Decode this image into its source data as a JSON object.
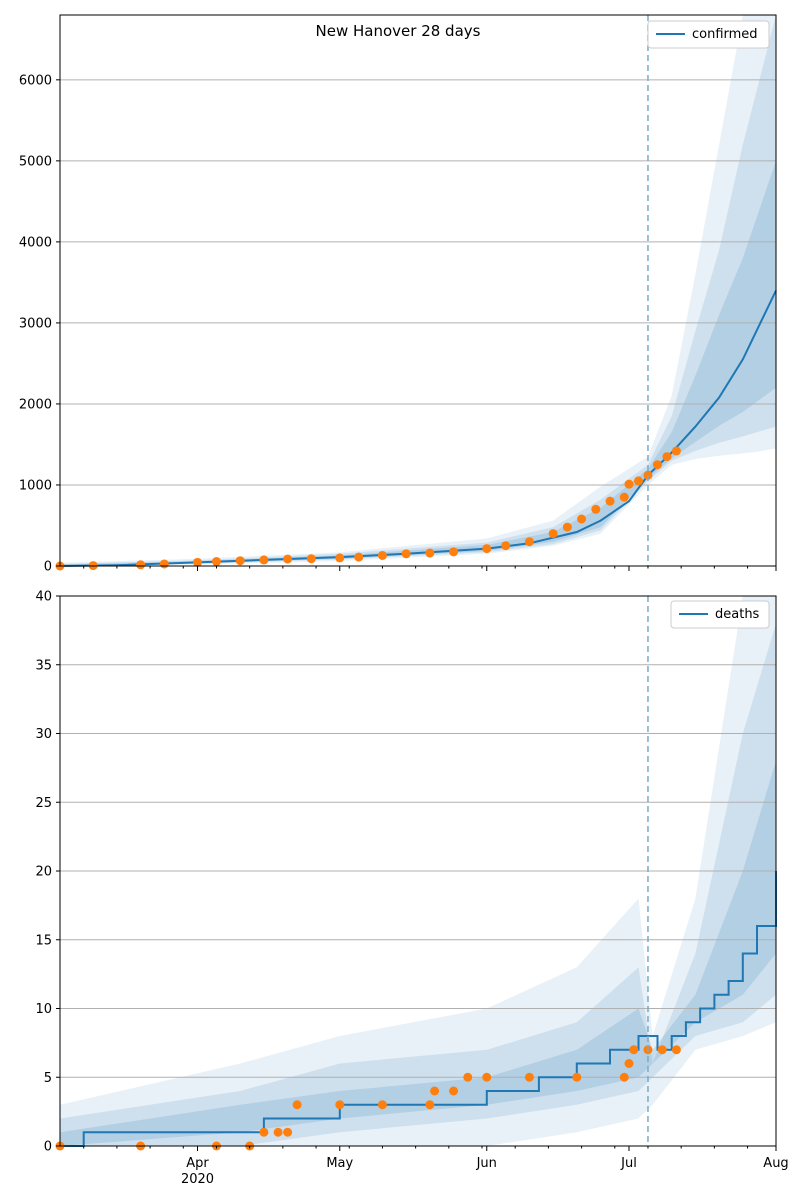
{
  "title": "New Hanover 28 days",
  "x_axis": {
    "start": "2020-03-03",
    "end": "2020-08-01",
    "tick_labels": [
      {
        "date": "2020-04-01",
        "label": "Apr",
        "sublabel": "2020"
      },
      {
        "date": "2020-05-01",
        "label": "May",
        "sublabel": ""
      },
      {
        "date": "2020-06-01",
        "label": "Jun",
        "sublabel": ""
      },
      {
        "date": "2020-07-01",
        "label": "Jul",
        "sublabel": ""
      },
      {
        "date": "2020-08-01",
        "label": "Aug",
        "sublabel": ""
      }
    ],
    "forecast_start": "2020-07-05"
  },
  "colors": {
    "line": "#1f77b4",
    "band": "#1f77b4",
    "points": "#ff7f0e",
    "divider": "#7aaac9",
    "grid": "#b0b0b0"
  },
  "chart_data": [
    {
      "type": "line",
      "panel": "top",
      "legend": "confirmed",
      "legend_position": "top-right",
      "grid": "horizontal",
      "ylim": [
        0,
        6800
      ],
      "yticks": [
        0,
        1000,
        2000,
        3000,
        4000,
        5000,
        6000
      ],
      "median": {
        "x": [
          "2020-03-03",
          "2020-03-15",
          "2020-04-01",
          "2020-04-15",
          "2020-05-01",
          "2020-05-15",
          "2020-06-01",
          "2020-06-10",
          "2020-06-20",
          "2020-06-25",
          "2020-07-01",
          "2020-07-05",
          "2020-07-10",
          "2020-07-15",
          "2020-07-20",
          "2020-07-25",
          "2020-08-01"
        ],
        "y": [
          0,
          10,
          45,
          75,
          110,
          150,
          215,
          280,
          420,
          560,
          800,
          1120,
          1400,
          1720,
          2080,
          2550,
          3400
        ]
      },
      "bands": [
        {
          "x": [
            "2020-03-03",
            "2020-04-01",
            "2020-05-01",
            "2020-06-01",
            "2020-06-15",
            "2020-06-25",
            "2020-07-05",
            "2020-07-10",
            "2020-07-15",
            "2020-07-20",
            "2020-07-25",
            "2020-07-28",
            "2020-08-01"
          ],
          "low": [
            0,
            20,
            60,
            150,
            250,
            400,
            1000,
            1250,
            1320,
            1360,
            1390,
            1410,
            1450
          ],
          "high": [
            40,
            90,
            170,
            340,
            560,
            980,
            1350,
            2100,
            3600,
            5200,
            6800,
            6800,
            6800
          ]
        },
        {
          "x": [
            "2020-03-03",
            "2020-04-01",
            "2020-05-01",
            "2020-06-01",
            "2020-06-15",
            "2020-06-25",
            "2020-07-05",
            "2020-07-10",
            "2020-07-15",
            "2020-07-20",
            "2020-07-25",
            "2020-08-01"
          ],
          "low": [
            0,
            30,
            80,
            170,
            270,
            440,
            1050,
            1300,
            1420,
            1520,
            1600,
            1720
          ],
          "high": [
            25,
            70,
            150,
            290,
            480,
            820,
            1250,
            1850,
            2900,
            3900,
            5200,
            6800
          ]
        },
        {
          "x": [
            "2020-03-03",
            "2020-04-01",
            "2020-05-01",
            "2020-06-01",
            "2020-06-15",
            "2020-06-25",
            "2020-07-05",
            "2020-07-10",
            "2020-07-15",
            "2020-07-20",
            "2020-07-25",
            "2020-08-01"
          ],
          "low": [
            0,
            35,
            90,
            185,
            300,
            480,
            1080,
            1330,
            1530,
            1730,
            1900,
            2200
          ],
          "high": [
            18,
            60,
            130,
            260,
            420,
            720,
            1200,
            1650,
            2350,
            3100,
            3800,
            5000
          ]
        }
      ],
      "observed": {
        "x": [
          "2020-03-03",
          "2020-03-10",
          "2020-03-20",
          "2020-03-25",
          "2020-04-01",
          "2020-04-05",
          "2020-04-10",
          "2020-04-15",
          "2020-04-20",
          "2020-04-25",
          "2020-05-01",
          "2020-05-05",
          "2020-05-10",
          "2020-05-15",
          "2020-05-20",
          "2020-05-25",
          "2020-06-01",
          "2020-06-05",
          "2020-06-10",
          "2020-06-15",
          "2020-06-18",
          "2020-06-21",
          "2020-06-24",
          "2020-06-27",
          "2020-06-30",
          "2020-07-01",
          "2020-07-03",
          "2020-07-05",
          "2020-07-07",
          "2020-07-09",
          "2020-07-11"
        ],
        "y": [
          0,
          5,
          15,
          25,
          45,
          55,
          65,
          75,
          85,
          90,
          100,
          110,
          130,
          150,
          160,
          175,
          215,
          250,
          300,
          400,
          480,
          580,
          700,
          800,
          850,
          1010,
          1050,
          1120,
          1250,
          1350,
          1420
        ]
      }
    },
    {
      "type": "line",
      "panel": "bottom",
      "legend": "deaths",
      "legend_position": "top-right",
      "grid": "horizontal",
      "ylim": [
        0,
        40
      ],
      "yticks": [
        0,
        5,
        10,
        15,
        20,
        25,
        30,
        35,
        40
      ],
      "median": {
        "x": [
          "2020-03-03",
          "2020-03-08",
          "2020-04-15",
          "2020-05-01",
          "2020-05-25",
          "2020-06-01",
          "2020-06-12",
          "2020-06-20",
          "2020-06-27",
          "2020-07-03",
          "2020-07-05",
          "2020-07-07",
          "2020-07-10",
          "2020-07-13",
          "2020-07-16",
          "2020-07-19",
          "2020-07-22",
          "2020-07-25",
          "2020-07-28",
          "2020-08-01"
        ],
        "y": [
          0,
          1,
          2,
          3,
          3,
          4,
          5,
          6,
          7,
          8,
          8,
          7,
          8,
          9,
          10,
          11,
          12,
          14,
          16,
          20
        ]
      },
      "bands": [
        {
          "x": [
            "2020-03-03",
            "2020-04-10",
            "2020-05-01",
            "2020-06-01",
            "2020-06-20",
            "2020-07-03",
            "2020-07-06",
            "2020-07-15",
            "2020-07-25",
            "2020-08-01"
          ],
          "low": [
            0,
            0,
            0,
            0,
            1,
            2,
            3,
            7,
            8,
            9
          ],
          "high": [
            3,
            6,
            8,
            10,
            13,
            18,
            8,
            18,
            40,
            40
          ]
        },
        {
          "x": [
            "2020-03-03",
            "2020-04-10",
            "2020-05-01",
            "2020-06-01",
            "2020-06-20",
            "2020-07-03",
            "2020-07-06",
            "2020-07-15",
            "2020-07-25",
            "2020-08-01"
          ],
          "low": [
            0,
            0,
            1,
            2,
            3,
            4,
            5,
            8,
            9,
            11
          ],
          "high": [
            2,
            4,
            6,
            7,
            9,
            13,
            6,
            14,
            30,
            38
          ]
        },
        {
          "x": [
            "2020-03-03",
            "2020-04-10",
            "2020-05-01",
            "2020-06-01",
            "2020-06-20",
            "2020-07-03",
            "2020-07-06",
            "2020-07-15",
            "2020-07-25",
            "2020-08-01"
          ],
          "low": [
            0,
            1,
            2,
            3,
            4,
            5,
            6,
            9,
            11,
            14
          ],
          "high": [
            1,
            3,
            4,
            5,
            7,
            10,
            7,
            11,
            20,
            28
          ]
        }
      ],
      "observed": {
        "x": [
          "2020-03-03",
          "2020-03-20",
          "2020-04-05",
          "2020-04-12",
          "2020-04-15",
          "2020-04-18",
          "2020-04-20",
          "2020-04-22",
          "2020-05-01",
          "2020-05-10",
          "2020-05-20",
          "2020-05-21",
          "2020-05-25",
          "2020-05-28",
          "2020-06-01",
          "2020-06-10",
          "2020-06-20",
          "2020-06-30",
          "2020-07-01",
          "2020-07-02",
          "2020-07-05",
          "2020-07-08",
          "2020-07-11"
        ],
        "y": [
          0,
          0,
          0,
          0,
          1,
          1,
          1,
          3,
          3,
          3,
          3,
          4,
          4,
          5,
          5,
          5,
          5,
          5,
          6,
          7,
          7,
          7,
          7
        ]
      }
    }
  ]
}
